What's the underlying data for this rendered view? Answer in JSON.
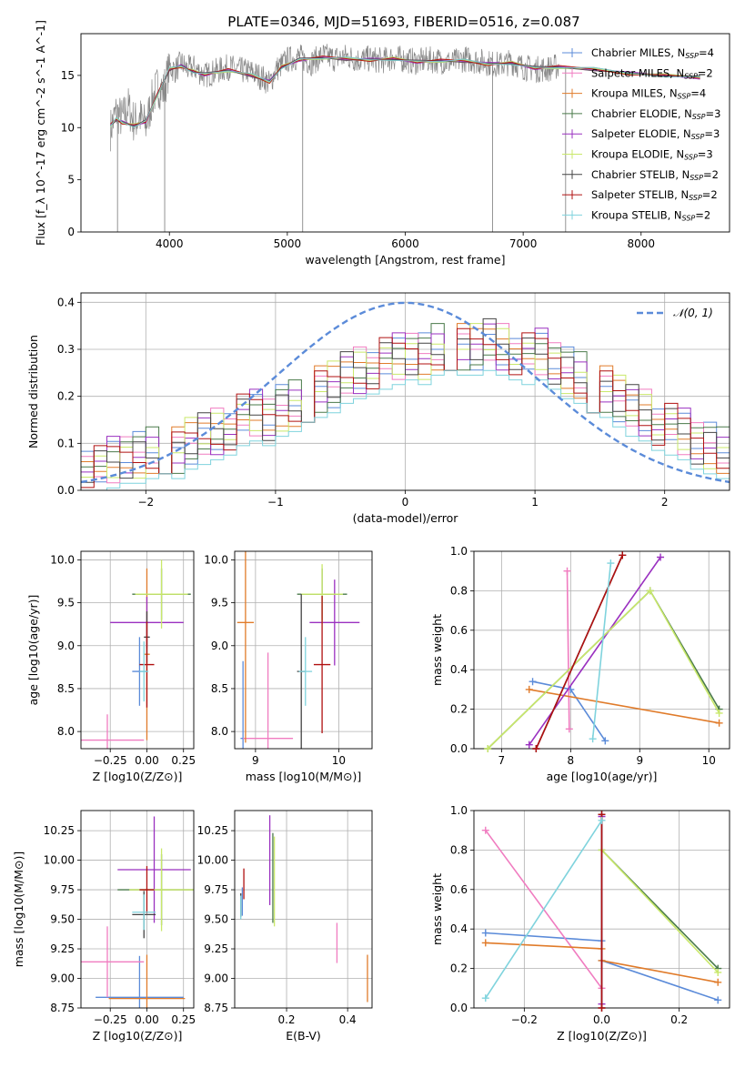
{
  "figure": {
    "title": "PLATE=0346, MJD=51693, FIBERID=0516, z=0.087"
  },
  "models": [
    {
      "name": "Chabrier MILES",
      "nssp": "4",
      "color": "#5b8bd9"
    },
    {
      "name": "Salpeter MILES",
      "nssp": "2",
      "color": "#f07cc0"
    },
    {
      "name": "Kroupa MILES",
      "nssp": "4",
      "color": "#e07b2a"
    },
    {
      "name": "Chabrier ELODIE",
      "nssp": "3",
      "color": "#4a7a4a"
    },
    {
      "name": "Salpeter ELODIE",
      "nssp": "3",
      "color": "#9a30c0"
    },
    {
      "name": "Kroupa ELODIE",
      "nssp": "3",
      "color": "#c9e86a"
    },
    {
      "name": "Chabrier STELIB",
      "nssp": "2",
      "color": "#444444"
    },
    {
      "name": "Salpeter STELIB",
      "nssp": "2",
      "color": "#b01010"
    },
    {
      "name": "Kroupa STELIB",
      "nssp": "2",
      "color": "#7fd3dd"
    }
  ],
  "chart_data": [
    {
      "id": "spectrum",
      "type": "line",
      "xlabel": "wavelength [Angstrom, rest frame]",
      "ylabel": "Flux [f_λ 10^-17 erg cm^-2 s^-1 A^-1]",
      "xlim": [
        3250,
        8750
      ],
      "ylim": [
        0,
        19
      ],
      "xticks": [
        4000,
        5000,
        6000,
        7000,
        8000
      ],
      "yticks": [
        0,
        5,
        10,
        15
      ],
      "grid": false,
      "legend": "right",
      "data_color": "#888888",
      "model_color": "#e85a3a",
      "data_points": [
        [
          3500,
          9.8
        ],
        [
          3550,
          11.5
        ],
        [
          3600,
          10.8
        ],
        [
          3650,
          12.0
        ],
        [
          3700,
          10.5
        ],
        [
          3750,
          11.0
        ],
        [
          3800,
          10.2
        ],
        [
          3850,
          12.5
        ],
        [
          3900,
          14.0
        ],
        [
          3950,
          13.5
        ],
        [
          4000,
          15.8
        ],
        [
          4050,
          15.5
        ],
        [
          4100,
          16.2
        ],
        [
          4150,
          15.6
        ],
        [
          4200,
          15.8
        ],
        [
          4300,
          15.0
        ],
        [
          4400,
          15.4
        ],
        [
          4500,
          15.8
        ],
        [
          4600,
          15.5
        ],
        [
          4700,
          15.3
        ],
        [
          4800,
          14.7
        ],
        [
          4850,
          14.2
        ],
        [
          4900,
          15.5
        ],
        [
          5000,
          16.5
        ],
        [
          5100,
          16.8
        ],
        [
          5200,
          16.2
        ],
        [
          5300,
          16.9
        ],
        [
          5400,
          16.6
        ],
        [
          5500,
          16.8
        ],
        [
          5600,
          16.5
        ],
        [
          5700,
          16.6
        ],
        [
          5800,
          16.4
        ],
        [
          5900,
          16.7
        ],
        [
          6000,
          16.5
        ],
        [
          6100,
          16.3
        ],
        [
          6200,
          16.5
        ],
        [
          6300,
          16.4
        ],
        [
          6400,
          16.2
        ],
        [
          6500,
          16.6
        ],
        [
          6600,
          16.4
        ],
        [
          6700,
          16.2
        ],
        [
          6800,
          16.0
        ],
        [
          6900,
          16.3
        ],
        [
          7000,
          15.8
        ],
        [
          7100,
          15.6
        ],
        [
          7200,
          15.6
        ],
        [
          7300,
          15.9
        ]
      ],
      "model_points": [
        [
          3500,
          10.2
        ],
        [
          3550,
          10.8
        ],
        [
          3600,
          10.5
        ],
        [
          3700,
          10.2
        ],
        [
          3800,
          10.6
        ],
        [
          3900,
          13.2
        ],
        [
          4000,
          15.6
        ],
        [
          4100,
          15.9
        ],
        [
          4200,
          15.4
        ],
        [
          4300,
          15.1
        ],
        [
          4500,
          15.5
        ],
        [
          4700,
          15.0
        ],
        [
          4850,
          14.4
        ],
        [
          4950,
          15.8
        ],
        [
          5100,
          16.5
        ],
        [
          5300,
          16.7
        ],
        [
          5500,
          16.6
        ],
        [
          5700,
          16.5
        ],
        [
          5900,
          16.6
        ],
        [
          6100,
          16.3
        ],
        [
          6300,
          16.4
        ],
        [
          6500,
          16.4
        ],
        [
          6700,
          16.1
        ],
        [
          6900,
          16.2
        ],
        [
          7100,
          15.7
        ],
        [
          7300,
          15.8
        ],
        [
          7600,
          15.6
        ],
        [
          7900,
          15.2
        ],
        [
          8200,
          15.0
        ],
        [
          8500,
          14.8
        ]
      ]
    },
    {
      "id": "residuals",
      "type": "histogram",
      "xlabel": "(data-model)/error",
      "ylabel": "Normed distribution",
      "xlim": [
        -2.5,
        2.5
      ],
      "ylim": [
        0,
        0.42
      ],
      "xticks": [
        -2,
        -1,
        0,
        1,
        2
      ],
      "yticks": [
        0.0,
        0.1,
        0.2,
        0.3,
        0.4
      ],
      "grid": true,
      "legend": "top-right",
      "normal_label": "𝒩(0, 1)",
      "normal_color": "#5b8bd9",
      "bin_width": 0.1,
      "bins_start": -2.5,
      "hist_values": [
        0.05,
        0.04,
        0.06,
        0.07,
        0.07,
        0.08,
        0.09,
        0.08,
        0.1,
        0.11,
        0.12,
        0.13,
        0.15,
        0.16,
        0.15,
        0.17,
        0.18,
        0.2,
        0.21,
        0.22,
        0.24,
        0.25,
        0.26,
        0.27,
        0.28,
        0.29,
        0.28,
        0.3,
        0.31,
        0.3,
        0.3,
        0.31,
        0.3,
        0.29,
        0.28,
        0.29,
        0.27,
        0.25,
        0.24,
        0.22,
        0.21,
        0.19,
        0.17,
        0.16,
        0.14,
        0.13,
        0.12,
        0.1,
        0.09,
        0.08
      ]
    },
    {
      "id": "age-vs-z",
      "type": "errorbar",
      "xlabel": "Z [log10(Z/Z⊙)]",
      "ylabel": "age  [log10(age/yr)]",
      "xlim": [
        -0.45,
        0.32
      ],
      "ylim": [
        7.8,
        10.1
      ],
      "xticks": [
        -0.25,
        0.0,
        0.25
      ],
      "yticks": [
        8.0,
        8.5,
        9.0,
        9.5,
        10.0
      ],
      "grid": true,
      "points": [
        {
          "m": 0,
          "x": -0.05,
          "y": 8.7,
          "xerr": 0.05,
          "yerr": 0.4
        },
        {
          "m": 1,
          "x": -0.27,
          "y": 7.9,
          "xerr": 0.25,
          "yerr": 0.3
        },
        {
          "m": 2,
          "x": 0.0,
          "y": 8.9,
          "xerr": 0.02,
          "yerr": 1.0
        },
        {
          "m": 3,
          "x": 0.1,
          "y": 9.6,
          "xerr": 0.2,
          "yerr": 0.3
        },
        {
          "m": 4,
          "x": 0.0,
          "y": 9.27,
          "xerr": 0.25,
          "yerr": 0.3
        },
        {
          "m": 5,
          "x": 0.1,
          "y": 9.6,
          "xerr": 0.18,
          "yerr": 0.4
        },
        {
          "m": 6,
          "x": 0.0,
          "y": 9.1,
          "xerr": 0.02,
          "yerr": 0.3
        },
        {
          "m": 7,
          "x": 0.0,
          "y": 8.78,
          "xerr": 0.05,
          "yerr": 0.5
        },
        {
          "m": 8,
          "x": -0.02,
          "y": 8.7,
          "xerr": 0.03,
          "yerr": 0.35
        }
      ]
    },
    {
      "id": "age-vs-mass",
      "type": "errorbar",
      "xlabel": "mass [log10(M/M⊙)]",
      "ylabel": "",
      "xlim": [
        8.75,
        10.4
      ],
      "ylim": [
        7.8,
        10.1
      ],
      "xticks": [
        9,
        10
      ],
      "yticks": [
        8.0,
        8.5,
        9.0,
        9.5,
        10.0
      ],
      "grid": true,
      "points": [
        {
          "m": 0,
          "x": 8.85,
          "y": 7.92,
          "xerr": 0.03,
          "yerr": 0.9
        },
        {
          "m": 1,
          "x": 9.15,
          "y": 7.92,
          "xerr": 0.3,
          "yerr": 1.0
        },
        {
          "m": 2,
          "x": 8.88,
          "y": 9.27,
          "xerr": 0.1,
          "yerr": 1.4
        },
        {
          "m": 3,
          "x": 9.8,
          "y": 9.6,
          "xerr": 0.3,
          "yerr": 0.3
        },
        {
          "m": 4,
          "x": 9.95,
          "y": 9.27,
          "xerr": 0.3,
          "yerr": 0.5
        },
        {
          "m": 5,
          "x": 9.8,
          "y": 9.6,
          "xerr": 0.25,
          "yerr": 0.35
        },
        {
          "m": 6,
          "x": 9.55,
          "y": 8.7,
          "xerr": 0.05,
          "yerr": 0.9
        },
        {
          "m": 7,
          "x": 9.8,
          "y": 8.78,
          "xerr": 0.1,
          "yerr": 0.8
        },
        {
          "m": 8,
          "x": 9.6,
          "y": 8.7,
          "xerr": 0.08,
          "yerr": 0.4
        }
      ]
    },
    {
      "id": "massweight-vs-age",
      "type": "line",
      "xlabel": "age  [log10(age/yr)]",
      "ylabel": "mass weight",
      "xlim": [
        6.6,
        10.3
      ],
      "ylim": [
        0.0,
        1.0
      ],
      "xticks": [
        7,
        8,
        9,
        10
      ],
      "yticks": [
        0.0,
        0.2,
        0.4,
        0.6,
        0.8,
        1.0
      ],
      "grid": true,
      "series": [
        {
          "m": 0,
          "x": [
            7.45,
            8.0,
            8.5
          ],
          "y": [
            0.34,
            0.3,
            0.04
          ]
        },
        {
          "m": 1,
          "x": [
            7.95,
            7.98
          ],
          "y": [
            0.9,
            0.1
          ]
        },
        {
          "m": 2,
          "x": [
            7.4,
            10.15
          ],
          "y": [
            0.3,
            0.13
          ]
        },
        {
          "m": 3,
          "x": [
            6.8,
            9.15,
            10.15
          ],
          "y": [
            0.0,
            0.8,
            0.2
          ]
        },
        {
          "m": 4,
          "x": [
            7.4,
            9.3
          ],
          "y": [
            0.02,
            0.97
          ]
        },
        {
          "m": 5,
          "x": [
            6.8,
            9.15,
            10.15
          ],
          "y": [
            0.0,
            0.8,
            0.18
          ]
        },
        {
          "m": 6,
          "x": [
            7.5,
            8.75
          ],
          "y": [
            0.0,
            0.98
          ]
        },
        {
          "m": 7,
          "x": [
            7.5,
            8.75
          ],
          "y": [
            0.0,
            0.98
          ]
        },
        {
          "m": 8,
          "x": [
            8.32,
            8.58
          ],
          "y": [
            0.05,
            0.94
          ]
        }
      ]
    },
    {
      "id": "mass-vs-z",
      "type": "errorbar",
      "xlabel": "Z [log10(Z/Z⊙)]",
      "ylabel": "mass [log10(M/M⊙)]",
      "xlim": [
        -0.45,
        0.32
      ],
      "ylim": [
        8.75,
        10.42
      ],
      "xticks": [
        -0.25,
        0.0,
        0.25
      ],
      "yticks": [
        8.75,
        9.0,
        9.25,
        9.5,
        9.75,
        10.0,
        10.25
      ],
      "grid": true,
      "points": [
        {
          "m": 0,
          "x": -0.05,
          "y": 8.84,
          "xerr": 0.3,
          "yerr": 0.35
        },
        {
          "m": 1,
          "x": -0.27,
          "y": 9.14,
          "xerr": 0.25,
          "yerr": 0.3
        },
        {
          "m": 2,
          "x": 0.0,
          "y": 8.83,
          "xerr": 0.26,
          "yerr": 0.37
        },
        {
          "m": 3,
          "x": 0.1,
          "y": 9.75,
          "xerr": 0.3,
          "yerr": 0.3
        },
        {
          "m": 4,
          "x": 0.05,
          "y": 9.92,
          "xerr": 0.25,
          "yerr": 0.45
        },
        {
          "m": 5,
          "x": 0.1,
          "y": 9.75,
          "xerr": 0.22,
          "yerr": 0.35
        },
        {
          "m": 6,
          "x": -0.02,
          "y": 9.54,
          "xerr": 0.08,
          "yerr": 0.2
        },
        {
          "m": 7,
          "x": 0.0,
          "y": 9.75,
          "xerr": 0.05,
          "yerr": 0.2
        },
        {
          "m": 8,
          "x": -0.02,
          "y": 9.56,
          "xerr": 0.08,
          "yerr": 0.15
        }
      ]
    },
    {
      "id": "mass-vs-ebv",
      "type": "errorbar",
      "xlabel": "E(B-V)",
      "ylabel": "",
      "xlim": [
        0.03,
        0.48
      ],
      "ylim": [
        8.75,
        10.42
      ],
      "xticks": [
        0.2,
        0.4
      ],
      "yticks": [
        8.75,
        9.0,
        9.25,
        9.5,
        9.75,
        10.0,
        10.25
      ],
      "grid": true,
      "points": [
        {
          "m": 0,
          "x": 0.055,
          "y": 9.65,
          "xerr": 0.0,
          "yerr": 0.12
        },
        {
          "m": 1,
          "x": 0.365,
          "y": 9.3,
          "xerr": 0.0,
          "yerr": 0.17
        },
        {
          "m": 2,
          "x": 0.465,
          "y": 9.0,
          "xerr": 0.0,
          "yerr": 0.2
        },
        {
          "m": 3,
          "x": 0.155,
          "y": 9.85,
          "xerr": 0.0,
          "yerr": 0.38
        },
        {
          "m": 4,
          "x": 0.145,
          "y": 10.0,
          "xerr": 0.0,
          "yerr": 0.38
        },
        {
          "m": 5,
          "x": 0.16,
          "y": 9.82,
          "xerr": 0.0,
          "yerr": 0.38
        },
        {
          "m": 6,
          "x": 0.05,
          "y": 9.62,
          "xerr": 0.0,
          "yerr": 0.1
        },
        {
          "m": 7,
          "x": 0.06,
          "y": 9.8,
          "xerr": 0.0,
          "yerr": 0.13
        },
        {
          "m": 8,
          "x": 0.05,
          "y": 9.6,
          "xerr": 0.0,
          "yerr": 0.1
        }
      ]
    },
    {
      "id": "massweight-vs-z",
      "type": "line",
      "xlabel": "Z [log10(Z/Z⊙)]",
      "ylabel": "mass weight",
      "xlim": [
        -0.33,
        0.33
      ],
      "ylim": [
        0.0,
        1.0
      ],
      "xticks": [
        -0.2,
        0.0,
        0.2
      ],
      "yticks": [
        0.0,
        0.2,
        0.4,
        0.6,
        0.8,
        1.0
      ],
      "grid": true,
      "series": [
        {
          "m": 0,
          "x": [
            -0.3,
            0.0,
            0.0,
            0.3
          ],
          "y": [
            0.38,
            0.34,
            0.24,
            0.04
          ]
        },
        {
          "m": 1,
          "x": [
            -0.3,
            0.0
          ],
          "y": [
            0.9,
            0.1
          ]
        },
        {
          "m": 2,
          "x": [
            -0.3,
            0.0,
            0.0,
            0.3
          ],
          "y": [
            0.33,
            0.3,
            0.24,
            0.13
          ]
        },
        {
          "m": 3,
          "x": [
            0.0,
            0.3
          ],
          "y": [
            0.8,
            0.2
          ]
        },
        {
          "m": 4,
          "x": [
            0.0,
            0.0
          ],
          "y": [
            0.02,
            0.97
          ]
        },
        {
          "m": 5,
          "x": [
            0.0,
            0.3
          ],
          "y": [
            0.8,
            0.18
          ]
        },
        {
          "m": 6,
          "x": [
            0.0,
            0.0
          ],
          "y": [
            0.0,
            0.98
          ]
        },
        {
          "m": 7,
          "x": [
            0.0,
            0.0
          ],
          "y": [
            0.0,
            0.98
          ]
        },
        {
          "m": 8,
          "x": [
            -0.3,
            0.0
          ],
          "y": [
            0.05,
            0.95
          ]
        }
      ]
    }
  ]
}
